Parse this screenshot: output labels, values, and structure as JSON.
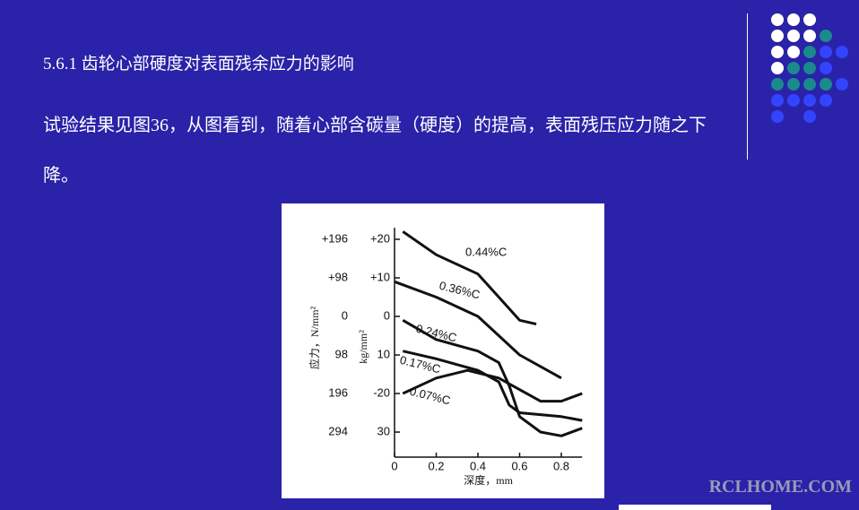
{
  "slide": {
    "heading": "5.6.1 齿轮心部硬度对表面残余应力的影响",
    "body": "试验结果见图36，从图看到，随着心部含碳量（硬度）的提高，表面残压应力随之下降。",
    "watermark": "RCLHOME.COM"
  },
  "figure": {
    "type": "line",
    "xlabel": "深度，mm",
    "ylabel": "kg/mm²",
    "y2label": "应力，N/mm²",
    "xlim": [
      0,
      0.9
    ],
    "xticks": [
      0,
      0.2,
      0.4,
      0.6,
      0.8
    ],
    "ylim": [
      -36.5,
      23
    ],
    "yticks": [
      {
        "value": 20,
        "label": "+20"
      },
      {
        "value": 10,
        "label": "+10"
      },
      0,
      {
        "value": -10,
        "label": "10"
      },
      {
        "value": -20,
        "label": "-20"
      },
      {
        "value": -30,
        "label": "30"
      }
    ],
    "y2lim": [
      -357.7,
      225.4
    ],
    "y2ticks": [
      {
        "value": 196,
        "label": "+196"
      },
      {
        "value": 98,
        "label": "+98"
      },
      0,
      {
        "value": -98,
        "label": "98"
      },
      {
        "value": -196,
        "label": "196"
      },
      {
        "value": -294,
        "label": "294"
      }
    ],
    "color": "#111111",
    "series": [
      {
        "name": "0.44%C",
        "x": [
          0.04,
          0.2,
          0.4,
          0.5,
          0.6,
          0.68
        ],
        "values": [
          22,
          16,
          11,
          5,
          -1,
          -2
        ]
      },
      {
        "name": "0.36%C",
        "x": [
          0,
          0.2,
          0.4,
          0.5,
          0.6,
          0.8
        ],
        "values": [
          9,
          5,
          0,
          -5,
          -10,
          -16
        ]
      },
      {
        "name": "0.24%C",
        "x": [
          0.04,
          0.2,
          0.4,
          0.5,
          0.55,
          0.6,
          0.7,
          0.8,
          0.9
        ],
        "values": [
          -1,
          -6,
          -9,
          -12,
          -18,
          -26,
          -30,
          -31,
          -29
        ]
      },
      {
        "name": "0.17%C",
        "x": [
          0.04,
          0.2,
          0.4,
          0.5,
          0.55,
          0.6,
          0.8,
          0.9
        ],
        "values": [
          -9,
          -11,
          -14,
          -17,
          -23,
          -25,
          -26,
          -27
        ]
      },
      {
        "name": "0.07%C",
        "x": [
          0.04,
          0.2,
          0.35,
          0.5,
          0.6,
          0.7,
          0.8,
          0.9
        ],
        "values": [
          -20,
          -16,
          -14,
          -16,
          -19,
          -22,
          -22,
          -20
        ]
      }
    ]
  }
}
